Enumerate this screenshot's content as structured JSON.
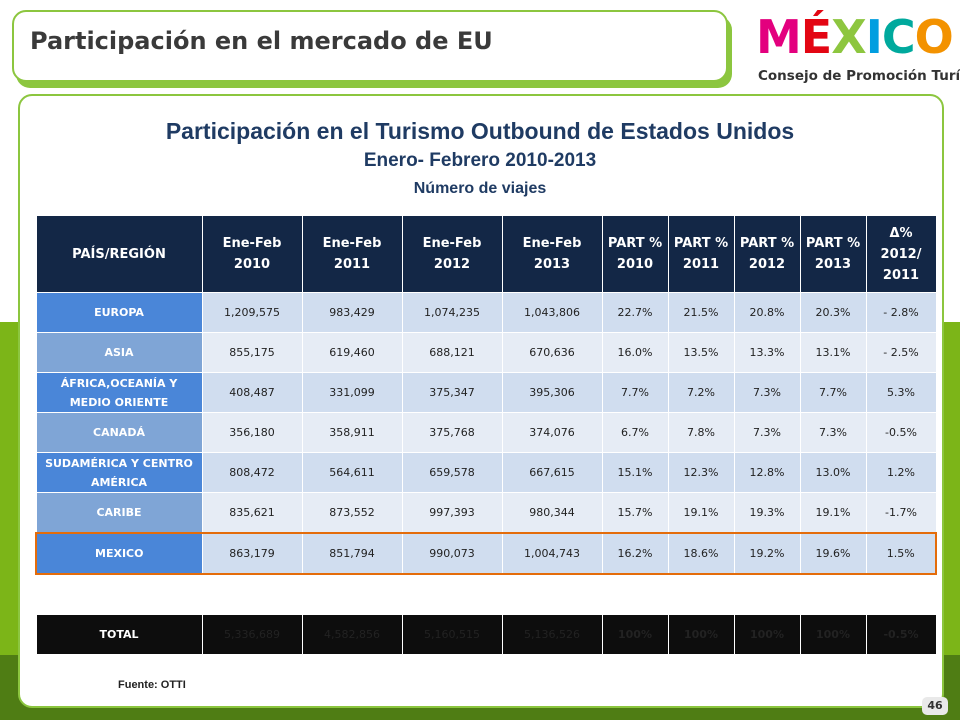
{
  "slide": {
    "title": "Participación en el mercado de EU",
    "logo": {
      "letters": [
        "M",
        "É",
        "X",
        "I",
        "C",
        "O"
      ],
      "letter_colors": [
        "#e3007e",
        "#e30613",
        "#8dc63f",
        "#009ee0",
        "#00a99d",
        "#f39200"
      ],
      "subtitle": "Consejo de Promoción Turística"
    },
    "heading": "Participación en el Turismo Outbound de Estados Unidos",
    "subheading": "Enero- Febrero 2010-2013",
    "unit_label": "Número de viajes",
    "source": "Fuente: OTTI",
    "page_number": "46"
  },
  "table": {
    "headers": [
      [
        "PAÍS/REGIÓN"
      ],
      [
        "Ene-Feb",
        "2010"
      ],
      [
        "Ene-Feb",
        "2011"
      ],
      [
        "Ene-Feb",
        "2012"
      ],
      [
        "Ene-Feb",
        "2013"
      ],
      [
        "PART %",
        "2010"
      ],
      [
        "PART %",
        "2011"
      ],
      [
        "PART %",
        "2012"
      ],
      [
        "PART %",
        "2013"
      ],
      [
        "Δ%",
        "2012/",
        "2011"
      ]
    ],
    "rows": [
      {
        "region": [
          "EUROPA"
        ],
        "values": [
          "1,209,575",
          "983,429",
          "1,074,235",
          "1,043,806",
          "22.7%",
          "21.5%",
          "20.8%",
          "20.3%",
          "- 2.8%"
        ]
      },
      {
        "region": [
          "ASIA"
        ],
        "values": [
          "855,175",
          "619,460",
          "688,121",
          "670,636",
          "16.0%",
          "13.5%",
          "13.3%",
          "13.1%",
          "- 2.5%"
        ]
      },
      {
        "region": [
          "ÁFRICA,OCEANÍA Y",
          "MEDIO ORIENTE"
        ],
        "values": [
          "408,487",
          "331,099",
          "375,347",
          "395,306",
          "7.7%",
          "7.2%",
          "7.3%",
          "7.7%",
          "5.3%"
        ]
      },
      {
        "region": [
          "CANADÁ"
        ],
        "values": [
          "356,180",
          "358,911",
          "375,768",
          "374,076",
          "6.7%",
          "7.8%",
          "7.3%",
          "7.3%",
          "-0.5%"
        ]
      },
      {
        "region": [
          "SUDAMÉRICA Y CENTRO",
          "AMÉRICA"
        ],
        "values": [
          "808,472",
          "564,611",
          "659,578",
          "667,615",
          "15.1%",
          "12.3%",
          "12.8%",
          "13.0%",
          "1.2%"
        ]
      },
      {
        "region": [
          "CARIBE"
        ],
        "values": [
          "835,621",
          "873,552",
          "997,393",
          "980,344",
          "15.7%",
          "19.1%",
          "19.3%",
          "19.1%",
          "-1.7%"
        ]
      },
      {
        "region": [
          "MEXICO"
        ],
        "values": [
          "863,179",
          "851,794",
          "990,073",
          "1,004,743",
          "16.2%",
          "18.6%",
          "19.2%",
          "19.6%",
          "1.5%"
        ]
      }
    ],
    "total": {
      "region": [
        "TOTAL"
      ],
      "values": [
        "5,336,689",
        "4,582,856",
        "5,160,515",
        "5,136,526",
        "100%",
        "100%",
        "100%",
        "100%",
        "-0.5%"
      ]
    }
  }
}
